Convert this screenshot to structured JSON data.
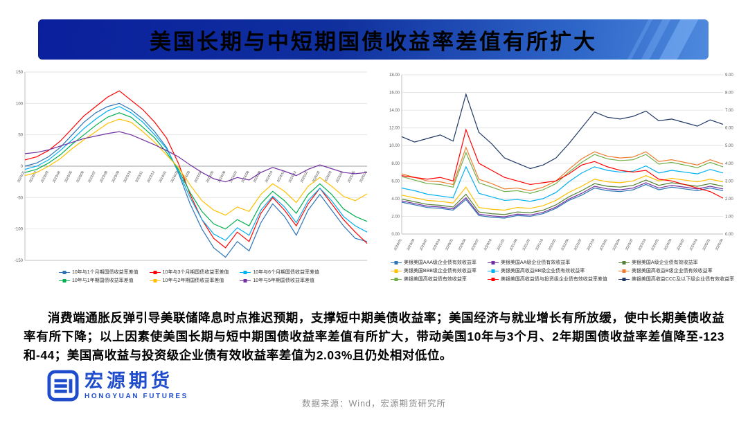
{
  "banner": {
    "title": "美国长期与中短期国债收益率差值有所扩大"
  },
  "commentary": "消费端通胀反弹引导美联储降息时点推迟预期，支撑短中期美债收益率；美国经济与就业增长有所放缓，使中长期美债收益率有所下降；以上因素使美国长期与短中期国债收益率差值有所扩大，带动美国10年与3个月、2年期国债收益率差值降至-123和-44；美国高收益与投资级企业债有效收益率差值为2.03%且仍处相对低位。",
  "footer": {
    "logo_cn": "宏源期货",
    "logo_en": "HONGYUAN FUTURES",
    "source": "数据来源：Wind，宏源期货研究所"
  },
  "colors": {
    "banner_start": "#0a1f9c",
    "banner_end": "#4e8add",
    "brand_blue": "#1f4ccc"
  },
  "chart_data": [
    {
      "type": "line",
      "title": "",
      "xlabel": "",
      "ylabel": "",
      "grid": true,
      "legend_position": "bottom",
      "xlabels_at_zero": true,
      "ylim": [
        -150,
        150
      ],
      "ytick_step": 50,
      "ytick_decimals": 0,
      "x": [
        "2023/01",
        "2023/02",
        "2023/03",
        "2023/04",
        "2023/05",
        "2023/06",
        "2023/07",
        "2023/08",
        "2023/09",
        "2023/10",
        "2023/11",
        "2023/12",
        "2024/01",
        "2024/02",
        "2024/03",
        "2024/04",
        "2024/05",
        "2024/06",
        "2024/07",
        "2024/08",
        "2024/09",
        "2024/10",
        "2024/11",
        "2024/12",
        "2025/01",
        "2025/02",
        "2025/03",
        "2025/04",
        "2025/05",
        "2025/06"
      ],
      "series": [
        {
          "name": "10年与1个月期国债收益率差值",
          "color": "#2E75B6",
          "values": [
            0,
            5,
            15,
            30,
            50,
            70,
            85,
            95,
            100,
            90,
            75,
            55,
            30,
            -10,
            -60,
            -100,
            -130,
            -145,
            -120,
            -135,
            -90,
            -60,
            -80,
            -110,
            -70,
            -45,
            -70,
            -95,
            -115,
            -120
          ]
        },
        {
          "name": "10年与3个月期国债收益率差值",
          "color": "#FF0000",
          "values": [
            10,
            15,
            25,
            40,
            60,
            80,
            95,
            110,
            120,
            105,
            90,
            70,
            45,
            5,
            -45,
            -85,
            -115,
            -130,
            -105,
            -120,
            -75,
            -50,
            -70,
            -95,
            -60,
            -35,
            -60,
            -85,
            -105,
            -123
          ]
        },
        {
          "name": "10年与6个月期国债收益率差值",
          "color": "#00B0F0",
          "values": [
            -5,
            0,
            10,
            25,
            42,
            60,
            75,
            88,
            95,
            85,
            70,
            50,
            28,
            -8,
            -50,
            -85,
            -108,
            -118,
            -98,
            -110,
            -70,
            -48,
            -65,
            -90,
            -55,
            -35,
            -55,
            -80,
            -95,
            -105
          ]
        },
        {
          "name": "10年与1年期国债收益率差值",
          "color": "#00B050",
          "values": [
            -10,
            -5,
            5,
            18,
            35,
            50,
            65,
            78,
            85,
            78,
            62,
            45,
            22,
            -5,
            -42,
            -72,
            -92,
            -100,
            -85,
            -95,
            -60,
            -40,
            -55,
            -75,
            -45,
            -28,
            -45,
            -68,
            -80,
            -88
          ]
        },
        {
          "name": "10年与2年期国债收益率差值",
          "color": "#FFC000",
          "values": [
            -15,
            -10,
            0,
            12,
            28,
            42,
            55,
            68,
            75,
            70,
            55,
            38,
            18,
            -2,
            -30,
            -55,
            -70,
            -78,
            -65,
            -72,
            -45,
            -28,
            -40,
            -58,
            -32,
            -18,
            -32,
            -48,
            -55,
            -44
          ]
        },
        {
          "name": "10年与5年期国债收益率差值",
          "color": "#7030A0",
          "values": [
            20,
            22,
            26,
            32,
            38,
            44,
            48,
            52,
            55,
            50,
            42,
            34,
            25,
            15,
            2,
            -10,
            -20,
            -25,
            -18,
            -22,
            -10,
            -2,
            -8,
            -15,
            -5,
            2,
            -4,
            -10,
            -12,
            -10
          ]
        }
      ]
    },
    {
      "type": "line",
      "title": "",
      "xlabel": "",
      "ylabel": "",
      "grid": true,
      "legend_position": "bottom",
      "xlabels_at_zero": false,
      "ylim": [
        0,
        18
      ],
      "ytick_step": 2,
      "ytick_decimals": 2,
      "y2lim": [
        0,
        9
      ],
      "y2tick_step": 1,
      "x": [
        "2019/01",
        "2019/04",
        "2019/07",
        "2019/10",
        "2020/01",
        "2020/04",
        "2020/07",
        "2020/10",
        "2021/01",
        "2021/04",
        "2021/07",
        "2021/10",
        "2022/01",
        "2022/04",
        "2022/07",
        "2022/10",
        "2023/01",
        "2023/04",
        "2023/07",
        "2023/10",
        "2024/01",
        "2024/04",
        "2024/07",
        "2024/10",
        "2025/01",
        "2025/04"
      ],
      "series": [
        {
          "name": "美银美国AAA级企业债有效收益率",
          "color": "#2E75B6",
          "values": [
            3.6,
            3.3,
            3.0,
            2.9,
            2.7,
            3.9,
            2.1,
            1.9,
            1.8,
            2.1,
            2.0,
            2.3,
            2.9,
            3.8,
            4.4,
            5.2,
            4.9,
            4.8,
            5.0,
            5.6,
            5.0,
            5.3,
            5.1,
            4.9,
            5.2,
            4.9
          ]
        },
        {
          "name": "美银美国AA级企业债有效收益率",
          "color": "#7030A0",
          "values": [
            3.75,
            3.45,
            3.15,
            3.05,
            2.85,
            4.1,
            2.25,
            2.05,
            1.95,
            2.25,
            2.15,
            2.45,
            3.05,
            3.95,
            4.6,
            5.4,
            5.1,
            5.0,
            5.2,
            5.8,
            5.2,
            5.5,
            5.3,
            5.1,
            5.4,
            5.1
          ]
        },
        {
          "name": "美银美国A级企业债有效收益率",
          "color": "#548235",
          "values": [
            3.95,
            3.65,
            3.35,
            3.25,
            3.05,
            4.5,
            2.5,
            2.3,
            2.2,
            2.5,
            2.4,
            2.7,
            3.3,
            4.2,
            4.9,
            5.7,
            5.4,
            5.3,
            5.5,
            6.1,
            5.5,
            5.8,
            5.6,
            5.4,
            5.7,
            5.4
          ]
        },
        {
          "name": "美银美国BBB级企业债有效收益率",
          "color": "#FFC000",
          "values": [
            4.4,
            4.1,
            3.8,
            3.7,
            3.5,
            5.3,
            3.0,
            2.8,
            2.7,
            3.0,
            2.9,
            3.2,
            3.8,
            4.7,
            5.4,
            6.2,
            5.9,
            5.8,
            6.0,
            6.6,
            6.0,
            6.3,
            6.1,
            5.9,
            6.2,
            5.9
          ]
        },
        {
          "name": "美银美国高收益BB级企业债有效收益率",
          "color": "#00B0F0",
          "values": [
            5.2,
            4.9,
            4.5,
            4.3,
            4.1,
            7.6,
            4.6,
            4.2,
            3.8,
            3.9,
            3.7,
            4.0,
            4.7,
            5.9,
            6.9,
            7.6,
            7.2,
            7.0,
            7.1,
            7.7,
            6.9,
            7.2,
            7.0,
            6.8,
            7.3,
            6.9
          ]
        },
        {
          "name": "美银美国高收益B级企业债有效收益率",
          "color": "#ED7D31",
          "values": [
            6.8,
            6.4,
            6.0,
            5.9,
            5.6,
            9.8,
            6.2,
            5.7,
            5.1,
            5.2,
            4.9,
            5.3,
            6.0,
            7.3,
            8.5,
            9.3,
            8.8,
            8.6,
            8.7,
            9.3,
            8.2,
            8.4,
            8.1,
            7.8,
            8.4,
            7.9
          ]
        },
        {
          "name": "美银美国高收益债有效收益率",
          "color": "#70AD47",
          "values": [
            6.5,
            6.1,
            5.7,
            5.6,
            5.3,
            9.2,
            5.8,
            5.3,
            4.8,
            4.9,
            4.6,
            5.0,
            5.7,
            7.0,
            8.1,
            9.0,
            8.5,
            8.3,
            8.4,
            9.0,
            7.9,
            8.1,
            7.8,
            7.5,
            8.1,
            7.6
          ]
        },
        {
          "name": "美银美国高收益债与投资级企业债有效收益率差值",
          "color": "#FF0000",
          "axis": "y2",
          "values": [
            3.3,
            3.2,
            3.1,
            3.2,
            3.0,
            5.9,
            4.0,
            3.6,
            3.2,
            3.0,
            2.8,
            2.9,
            3.0,
            3.4,
            3.9,
            4.1,
            3.8,
            3.6,
            3.5,
            3.6,
            3.1,
            3.0,
            2.8,
            2.6,
            2.4,
            2.03
          ]
        },
        {
          "name": "美银美国高收益CCC及以下级企业债有效收益率",
          "color": "#1F3864",
          "values": [
            11.0,
            10.4,
            10.8,
            11.2,
            10.5,
            15.8,
            11.5,
            10.2,
            8.6,
            8.0,
            7.4,
            7.8,
            8.6,
            10.2,
            12.0,
            13.8,
            13.2,
            13.0,
            13.3,
            13.9,
            12.8,
            13.0,
            12.6,
            12.2,
            12.9,
            12.4
          ]
        }
      ]
    }
  ]
}
